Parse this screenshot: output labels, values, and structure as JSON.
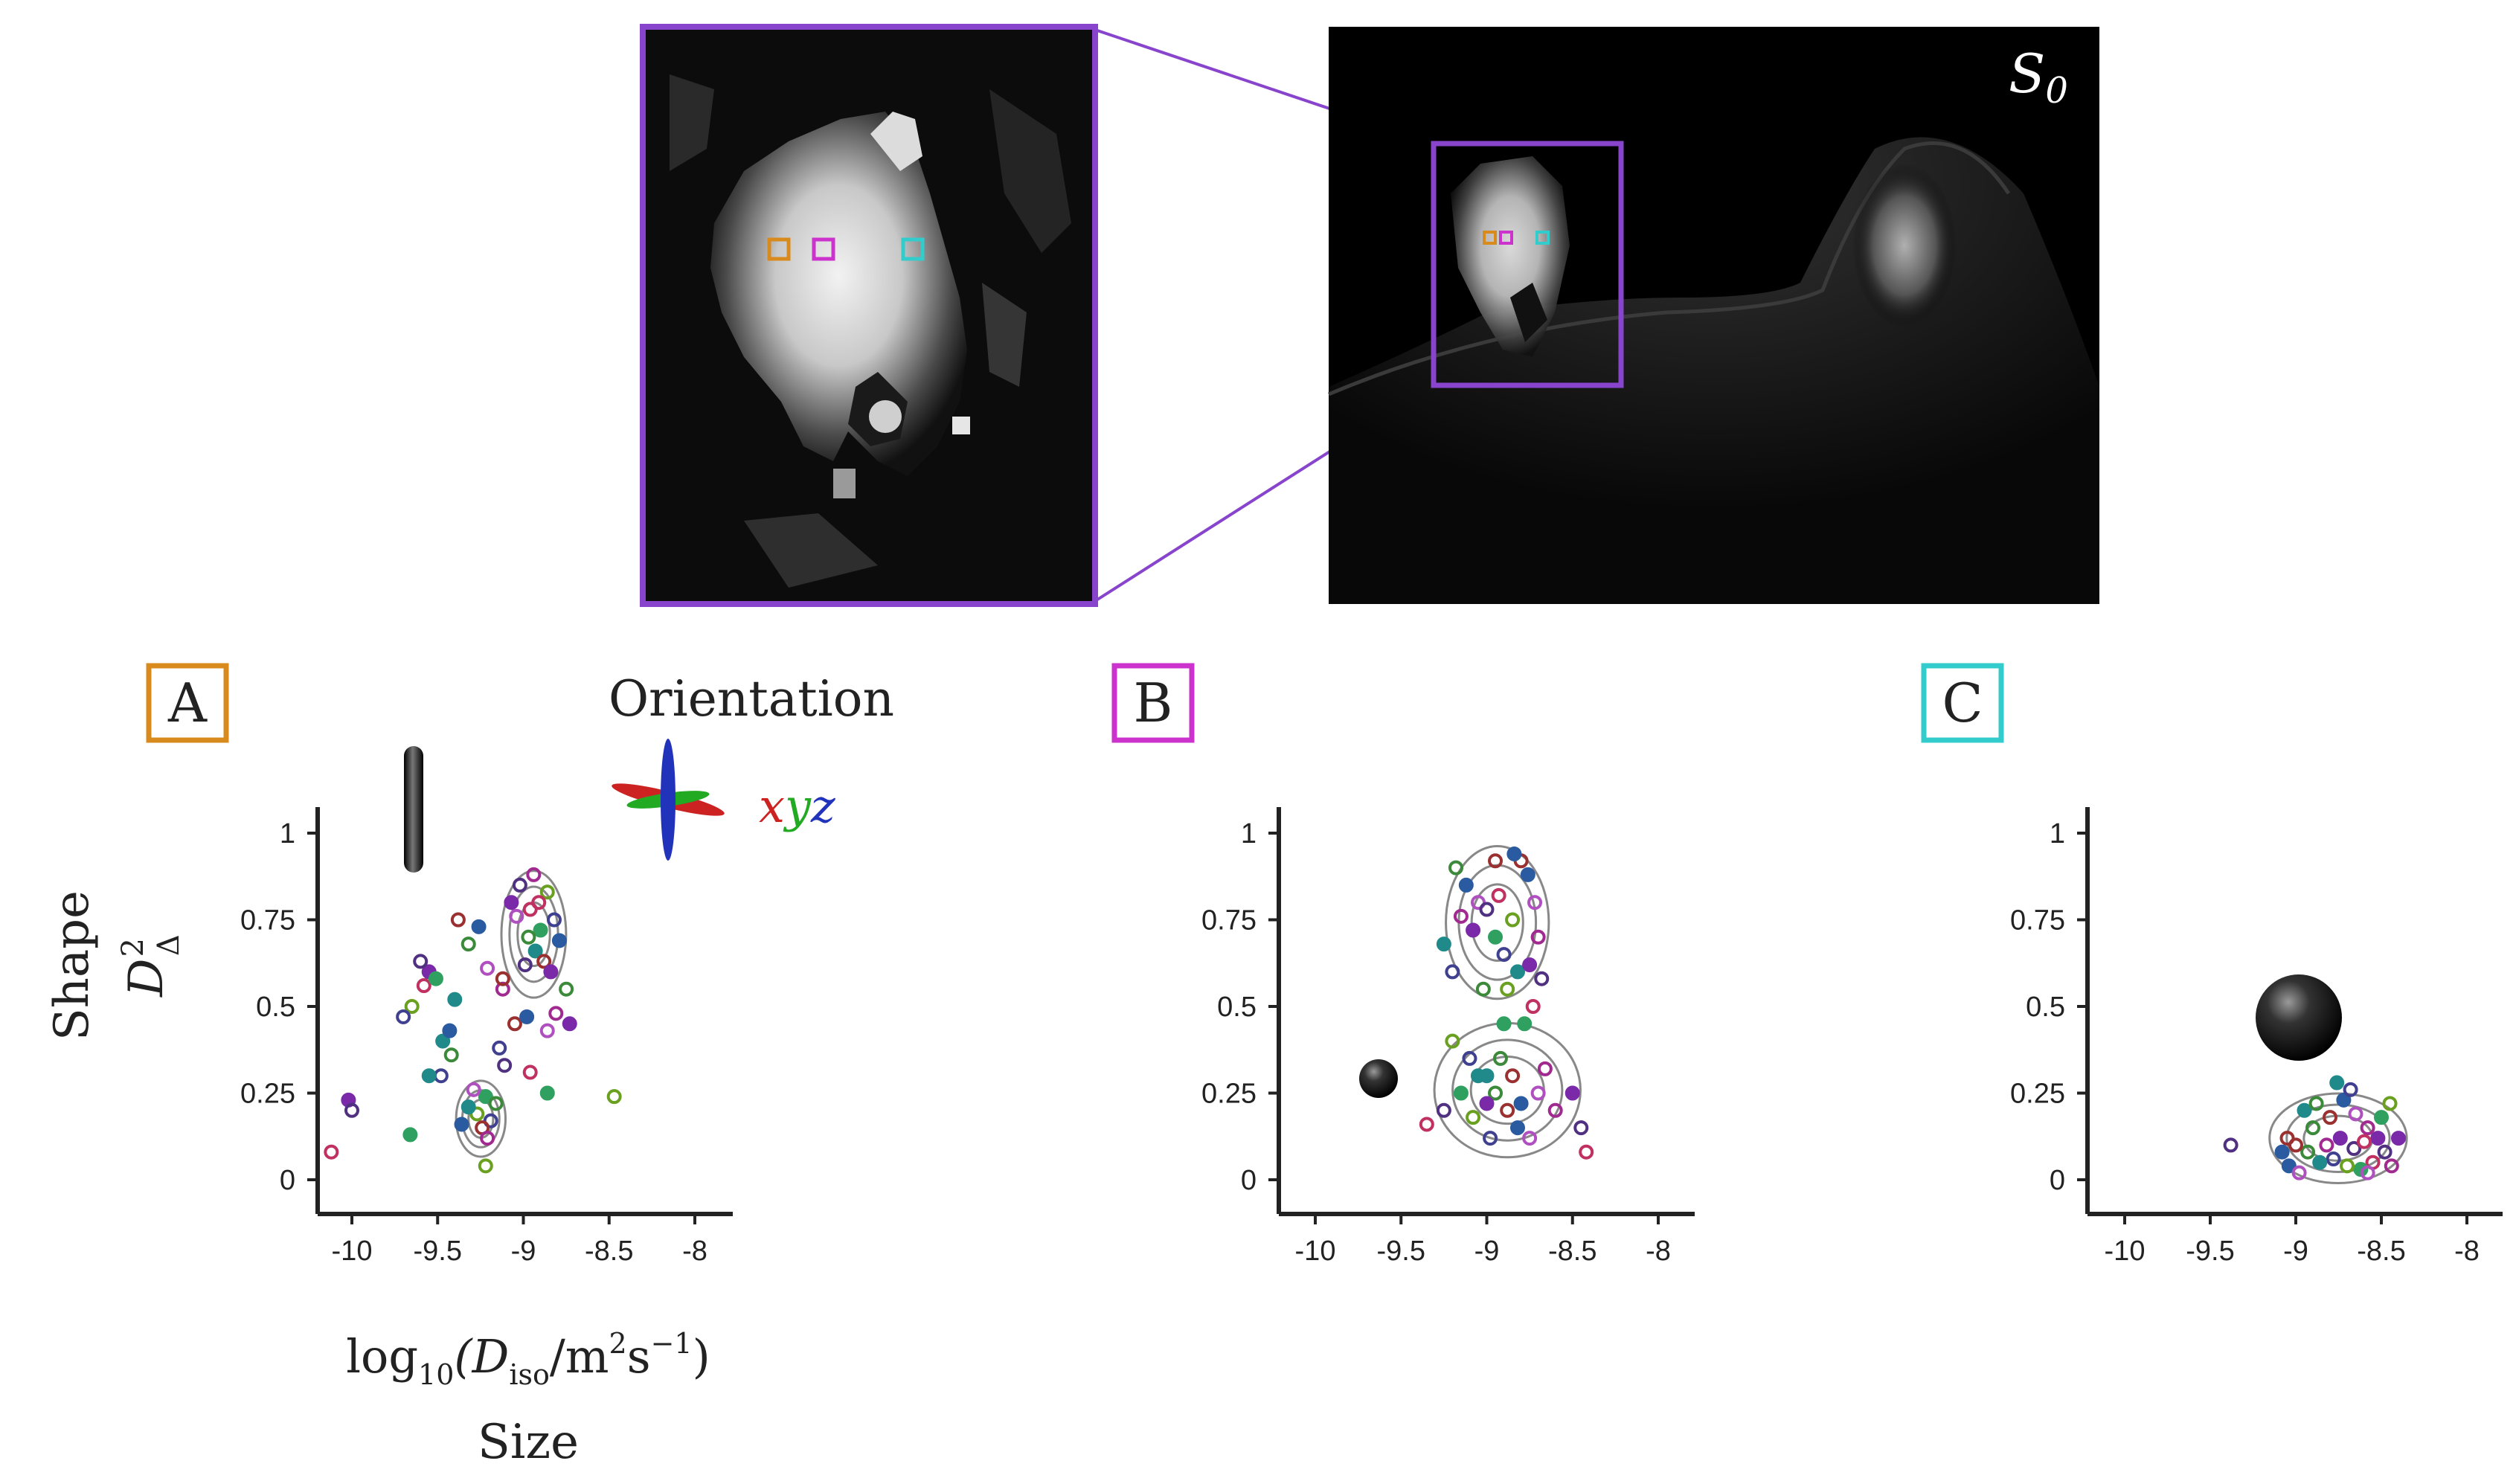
{
  "mri": {
    "image_label": "S",
    "image_label_sub": "0",
    "roi_colors": {
      "A": "#d98a1c",
      "B": "#cc33cc",
      "C": "#33cccc"
    },
    "frame_color": "#8844cc"
  },
  "legend": {
    "orientation_title": "Orientation",
    "orientation_axes": [
      "x",
      "y",
      "z"
    ],
    "axis_colors": {
      "x": "#cc2222",
      "y": "#22aa22",
      "z": "#2233bb"
    }
  },
  "axes": {
    "y_title": "Shape",
    "y_symbol": "D",
    "y_symbol_sub": "Δ",
    "y_symbol_sup": "2",
    "x_expr_log": "log",
    "x_expr_log_sub": "10",
    "x_expr_open": "(D",
    "x_expr_D_sub": "iso",
    "x_expr_unit1": "/m",
    "x_expr_unit1_sup": "2",
    "x_expr_unit2": "s",
    "x_expr_unit2_sup": "−1",
    "x_expr_close": ")",
    "x_title": "Size"
  },
  "chart_data": [
    {
      "type": "scatter",
      "panel": "A",
      "x_ticks": [
        "-10",
        "-9.5",
        "-9",
        "-8.5",
        "-8"
      ],
      "y_ticks": [
        "0",
        "0.25",
        "0.5",
        "0.75",
        "1"
      ],
      "xlim": [
        -10.15,
        -7.85
      ],
      "ylim": [
        -0.1,
        1.08
      ],
      "glyph": "elongated",
      "points": [
        [
          -9.07,
          0.8
        ],
        [
          -9.02,
          0.85
        ],
        [
          -8.96,
          0.78
        ],
        [
          -8.9,
          0.72
        ],
        [
          -8.86,
          0.83
        ],
        [
          -8.82,
          0.75
        ],
        [
          -8.93,
          0.66
        ],
        [
          -8.97,
          0.7
        ],
        [
          -8.88,
          0.63
        ],
        [
          -8.79,
          0.69
        ],
        [
          -9.04,
          0.76
        ],
        [
          -8.94,
          0.88
        ],
        [
          -8.84,
          0.6
        ],
        [
          -8.99,
          0.62
        ],
        [
          -8.91,
          0.8
        ],
        [
          -9.22,
          0.24
        ],
        [
          -9.27,
          0.19
        ],
        [
          -9.19,
          0.17
        ],
        [
          -9.32,
          0.21
        ],
        [
          -9.16,
          0.22
        ],
        [
          -9.24,
          0.15
        ],
        [
          -9.36,
          0.16
        ],
        [
          -9.29,
          0.26
        ],
        [
          -9.21,
          0.12
        ],
        [
          -9.55,
          0.6
        ],
        [
          -9.6,
          0.63
        ],
        [
          -9.58,
          0.56
        ],
        [
          -9.51,
          0.58
        ],
        [
          -9.65,
          0.5
        ],
        [
          -9.7,
          0.47
        ],
        [
          -9.47,
          0.4
        ],
        [
          -9.42,
          0.36
        ],
        [
          -9.05,
          0.45
        ],
        [
          -8.98,
          0.47
        ],
        [
          -8.86,
          0.43
        ],
        [
          -8.81,
          0.48
        ],
        [
          -8.73,
          0.45
        ],
        [
          -9.11,
          0.33
        ],
        [
          -8.96,
          0.31
        ],
        [
          -8.86,
          0.25
        ],
        [
          -8.47,
          0.24
        ],
        [
          -9.48,
          0.3
        ],
        [
          -9.55,
          0.3
        ],
        [
          -9.32,
          0.68
        ],
        [
          -9.38,
          0.75
        ],
        [
          -9.26,
          0.73
        ],
        [
          -9.21,
          0.61
        ],
        [
          -9.12,
          0.55
        ],
        [
          -10.02,
          0.23
        ],
        [
          -10.0,
          0.2
        ],
        [
          -10.12,
          0.08
        ],
        [
          -9.66,
          0.13
        ],
        [
          -9.22,
          0.04
        ],
        [
          -9.14,
          0.38
        ],
        [
          -9.4,
          0.52
        ],
        [
          -8.75,
          0.55
        ],
        [
          -9.12,
          0.58
        ],
        [
          -9.43,
          0.43
        ]
      ],
      "contours": true
    },
    {
      "type": "scatter",
      "panel": "B",
      "x_ticks": [
        "-10",
        "-9.5",
        "-9",
        "-8.5",
        "-8"
      ],
      "y_ticks": [
        "0",
        "0.25",
        "0.5",
        "0.75",
        "1"
      ],
      "xlim": [
        -10.15,
        -7.85
      ],
      "ylim": [
        -0.1,
        1.08
      ],
      "glyph": "sphere-small",
      "points": [
        [
          -9.12,
          0.85
        ],
        [
          -9.05,
          0.8
        ],
        [
          -9.15,
          0.76
        ],
        [
          -9.08,
          0.72
        ],
        [
          -9.0,
          0.78
        ],
        [
          -8.93,
          0.82
        ],
        [
          -8.95,
          0.7
        ],
        [
          -8.85,
          0.75
        ],
        [
          -8.9,
          0.65
        ],
        [
          -8.82,
          0.6
        ],
        [
          -9.02,
          0.55
        ],
        [
          -8.8,
          0.92
        ],
        [
          -8.76,
          0.88
        ],
        [
          -8.72,
          0.8
        ],
        [
          -8.7,
          0.7
        ],
        [
          -8.75,
          0.62
        ],
        [
          -8.68,
          0.58
        ],
        [
          -8.73,
          0.5
        ],
        [
          -8.78,
          0.45
        ],
        [
          -9.2,
          0.4
        ],
        [
          -9.1,
          0.35
        ],
        [
          -9.05,
          0.3
        ],
        [
          -8.95,
          0.25
        ],
        [
          -8.88,
          0.2
        ],
        [
          -8.82,
          0.15
        ],
        [
          -8.75,
          0.12
        ],
        [
          -8.6,
          0.2
        ],
        [
          -8.5,
          0.25
        ],
        [
          -8.45,
          0.15
        ],
        [
          -8.42,
          0.08
        ],
        [
          -9.15,
          0.25
        ],
        [
          -9.08,
          0.18
        ],
        [
          -8.98,
          0.12
        ],
        [
          -9.0,
          0.3
        ],
        [
          -8.92,
          0.35
        ],
        [
          -8.85,
          0.3
        ],
        [
          -8.8,
          0.22
        ],
        [
          -8.7,
          0.25
        ],
        [
          -8.66,
          0.32
        ],
        [
          -9.0,
          0.22
        ],
        [
          -9.25,
          0.2
        ],
        [
          -9.35,
          0.16
        ],
        [
          -8.9,
          0.45
        ],
        [
          -8.88,
          0.55
        ],
        [
          -9.2,
          0.6
        ],
        [
          -9.25,
          0.68
        ],
        [
          -9.18,
          0.9
        ],
        [
          -8.95,
          0.92
        ],
        [
          -8.84,
          0.94
        ]
      ],
      "contours": true
    },
    {
      "type": "scatter",
      "panel": "C",
      "x_ticks": [
        "-10",
        "-9.5",
        "-9",
        "-8.5",
        "-8"
      ],
      "y_ticks": [
        "0",
        "0.25",
        "0.5",
        "0.75",
        "1"
      ],
      "xlim": [
        -10.15,
        -7.85
      ],
      "ylim": [
        -0.1,
        1.08
      ],
      "glyph": "sphere-large",
      "points": [
        [
          -8.95,
          0.2
        ],
        [
          -8.88,
          0.22
        ],
        [
          -8.8,
          0.18
        ],
        [
          -8.72,
          0.23
        ],
        [
          -8.65,
          0.19
        ],
        [
          -8.58,
          0.15
        ],
        [
          -8.52,
          0.12
        ],
        [
          -8.48,
          0.08
        ],
        [
          -8.55,
          0.05
        ],
        [
          -8.62,
          0.03
        ],
        [
          -8.7,
          0.04
        ],
        [
          -8.78,
          0.06
        ],
        [
          -8.86,
          0.05
        ],
        [
          -8.93,
          0.08
        ],
        [
          -9.0,
          0.1
        ],
        [
          -9.04,
          0.04
        ],
        [
          -8.98,
          0.02
        ],
        [
          -8.82,
          0.1
        ],
        [
          -8.74,
          0.12
        ],
        [
          -8.66,
          0.09
        ],
        [
          -8.6,
          0.11
        ],
        [
          -8.5,
          0.18
        ],
        [
          -8.45,
          0.22
        ],
        [
          -8.68,
          0.26
        ],
        [
          -8.76,
          0.28
        ],
        [
          -8.9,
          0.15
        ],
        [
          -9.05,
          0.12
        ],
        [
          -9.08,
          0.08
        ],
        [
          -8.58,
          0.02
        ],
        [
          -8.44,
          0.04
        ],
        [
          -8.4,
          0.12
        ],
        [
          -9.38,
          0.1
        ]
      ],
      "contours": true
    }
  ]
}
